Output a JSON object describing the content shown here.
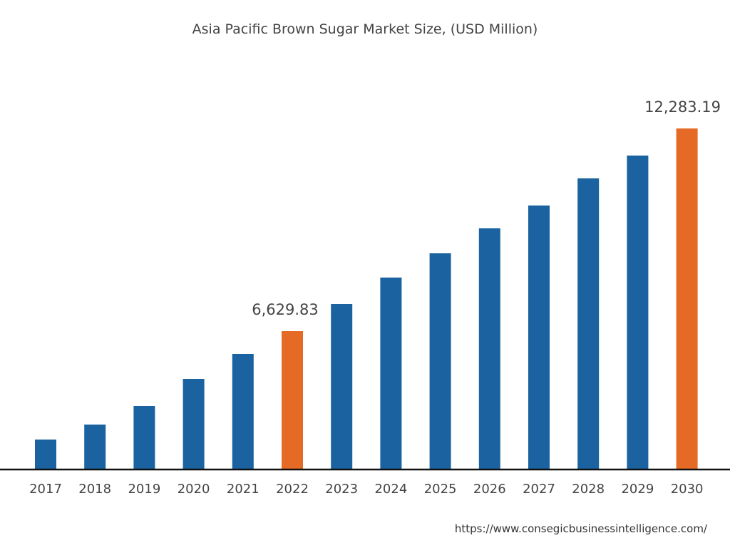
{
  "chart_data": {
    "type": "bar",
    "title": "Asia Pacific Brown Sugar Market Size, (USD Million)",
    "xlabel": "",
    "ylabel": "",
    "categories": [
      "2017",
      "2018",
      "2019",
      "2020",
      "2021",
      "2022",
      "2023",
      "2024",
      "2025",
      "2026",
      "2027",
      "2028",
      "2029",
      "2030"
    ],
    "values": [
      3604,
      4022,
      4540,
      5296,
      5993,
      6629.83,
      7386,
      8123,
      8800,
      9496,
      10133,
      10890,
      11527,
      12283.19
    ],
    "highlighted": [
      "2022",
      "2030"
    ],
    "data_labels": {
      "2022": "6,629.83",
      "2030": "12,283.19"
    },
    "ylim": [
      2768,
      13876
    ],
    "grid": false,
    "legend": "none",
    "colors": {
      "bar": "#1a63a0",
      "highlight": "#e56a25",
      "axis": "#111111"
    }
  },
  "source": "https://www.consegicbusinessintelligence.com/"
}
